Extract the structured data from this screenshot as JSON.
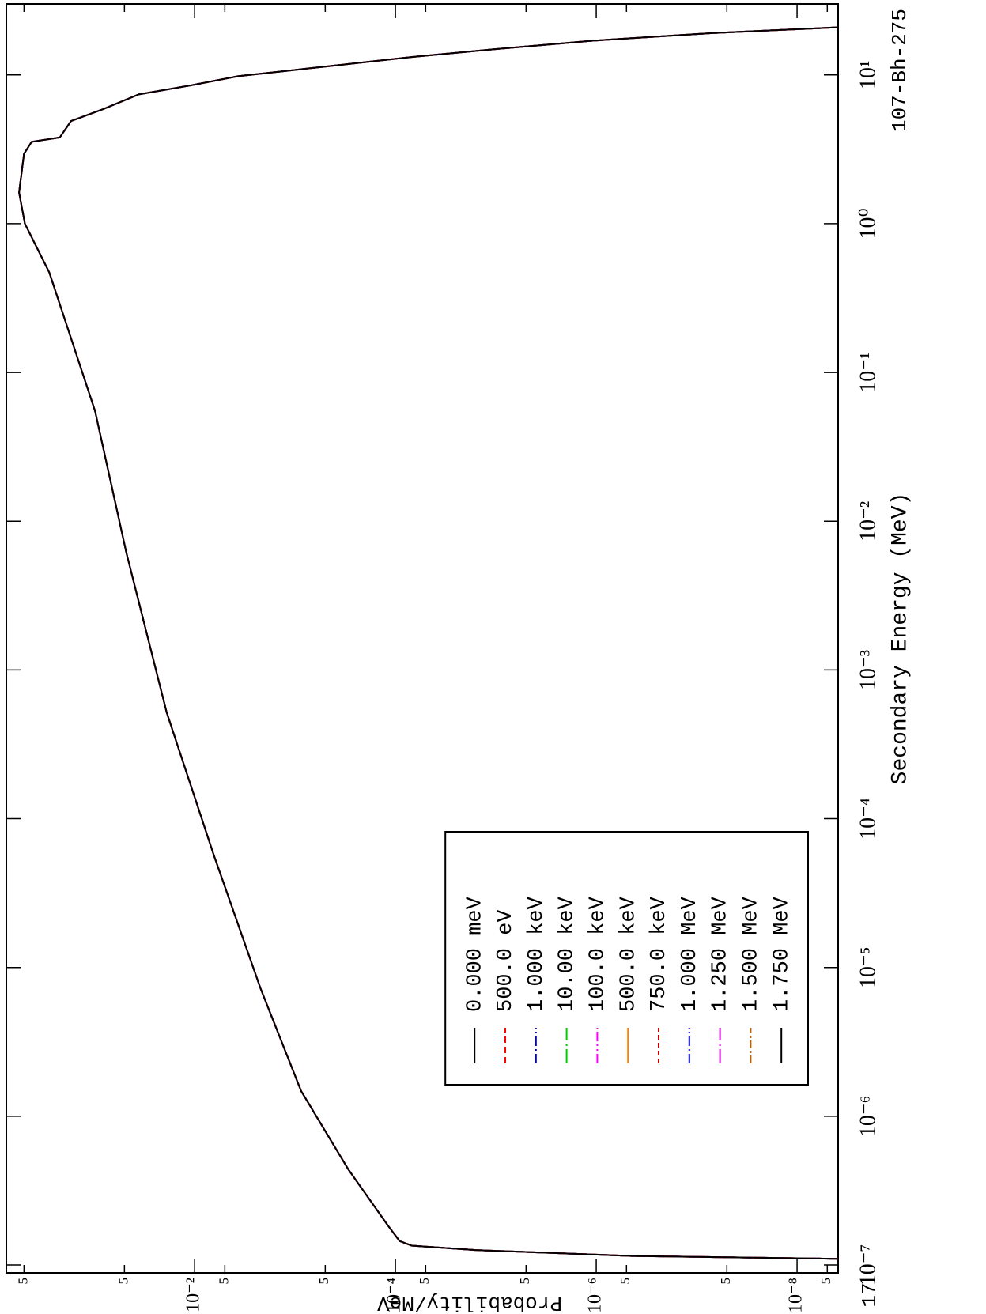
{
  "chart_data": {
    "type": "line",
    "xlabel": "Secondary Energy (MeV)",
    "ylabel": "Probability/MeV",
    "annotations": [
      "107-Bh-275",
      "17"
    ],
    "log_x": true,
    "log_y": true,
    "legend": "lower left",
    "xlim": [
      8.85e-08,
      30
    ],
    "ylim": [
      3.9e-09,
      0.75
    ],
    "xticks": [
      {
        "value": 1e-07,
        "label": "10⁻⁷"
      },
      {
        "value": 1e-06,
        "label": "10⁻⁶"
      },
      {
        "value": 1e-05,
        "label": "10⁻⁵"
      },
      {
        "value": 0.0001,
        "label": "10⁻⁴"
      },
      {
        "value": 0.001,
        "label": "10⁻³"
      },
      {
        "value": 0.01,
        "label": "10⁻²"
      },
      {
        "value": 0.1,
        "label": "10⁻¹"
      },
      {
        "value": 1,
        "label": "10⁰"
      },
      {
        "value": 10,
        "label": "10¹"
      }
    ],
    "yticks": [
      {
        "value": 0.5,
        "label": "5"
      },
      {
        "value": 0.05,
        "label": "5"
      },
      {
        "value": 0.01,
        "label": "10⁻²"
      },
      {
        "value": 0.005,
        "label": "5"
      },
      {
        "value": 0.0005,
        "label": "5"
      },
      {
        "value": 0.0001,
        "label": "10⁻⁴"
      },
      {
        "value": 5e-05,
        "label": "5"
      },
      {
        "value": 5e-06,
        "label": "5"
      },
      {
        "value": 1e-06,
        "label": "10⁻⁶"
      },
      {
        "value": 5e-07,
        "label": "5"
      },
      {
        "value": 5e-08,
        "label": "5"
      },
      {
        "value": 1e-08,
        "label": "10⁻⁸"
      },
      {
        "value": 5e-09,
        "label": "5"
      }
    ],
    "x": [
      1.1e-07,
      1.15e-07,
      1.26e-07,
      1.35e-07,
      1.45e-07,
      1.86e-07,
      4.4e-07,
      1.48e-06,
      7.2e-06,
      5.8e-05,
      0.00052,
      0.0062,
      0.055,
      0.47,
      1.0,
      1.62,
      2.95,
      3.55,
      3.8,
      4.9,
      5.9,
      7.4,
      8.5,
      9.8,
      11.2,
      13.2,
      14.8,
      17.0,
      19.1,
      20.9
    ],
    "series": [
      {
        "name": "0.000 meV",
        "color": "#000000",
        "values": [
          3.9e-09,
          4.4e-07,
          1.6e-05,
          6.9e-05,
          9.1e-05,
          0.00012,
          0.000295,
          0.00087,
          0.0022,
          0.0065,
          0.019,
          0.048,
          0.098,
          0.28,
          0.49,
          0.56,
          0.5,
          0.42,
          0.22,
          0.17,
          0.081,
          0.036,
          0.011,
          0.0037,
          0.00062,
          6.9e-05,
          1.15e-05,
          1.07e-06,
          7.1e-08,
          3.9e-09
        ]
      },
      {
        "name": "500.0 eV",
        "color": "#ff0000",
        "values": [
          3.9e-09,
          4.4e-07,
          1.6e-05,
          6.9e-05,
          9.1e-05,
          0.00012,
          0.000295,
          0.00087,
          0.0022,
          0.0065,
          0.019,
          0.048,
          0.098,
          0.28,
          0.49,
          0.56,
          0.5,
          0.42,
          0.22,
          0.17,
          0.081,
          0.036,
          0.011,
          0.0037,
          0.00062,
          6.9e-05,
          1.15e-05,
          1.07e-06,
          7.1e-08,
          3.9e-09
        ]
      },
      {
        "name": "1.000 keV",
        "color": "#0000cc",
        "values": [
          3.9e-09,
          4.4e-07,
          1.6e-05,
          6.9e-05,
          9.1e-05,
          0.00012,
          0.000295,
          0.00087,
          0.0022,
          0.0065,
          0.019,
          0.048,
          0.098,
          0.28,
          0.49,
          0.56,
          0.5,
          0.42,
          0.22,
          0.17,
          0.081,
          0.036,
          0.011,
          0.0037,
          0.00062,
          6.9e-05,
          1.15e-05,
          1.07e-06,
          7.1e-08,
          3.9e-09
        ]
      },
      {
        "name": "10.00 keV",
        "color": "#00cc00",
        "values": [
          3.9e-09,
          4.4e-07,
          1.6e-05,
          6.9e-05,
          9.1e-05,
          0.00012,
          0.000295,
          0.00087,
          0.0022,
          0.0065,
          0.019,
          0.048,
          0.098,
          0.28,
          0.49,
          0.56,
          0.5,
          0.42,
          0.22,
          0.17,
          0.081,
          0.036,
          0.011,
          0.0037,
          0.00062,
          6.9e-05,
          1.15e-05,
          1.07e-06,
          7.1e-08,
          3.9e-09
        ]
      },
      {
        "name": "100.0 keV",
        "color": "#ff00ff",
        "values": [
          3.9e-09,
          4.4e-07,
          1.6e-05,
          6.9e-05,
          9.1e-05,
          0.00012,
          0.000295,
          0.00087,
          0.0022,
          0.0065,
          0.019,
          0.048,
          0.098,
          0.28,
          0.49,
          0.56,
          0.5,
          0.42,
          0.22,
          0.17,
          0.081,
          0.036,
          0.011,
          0.0037,
          0.00062,
          6.9e-05,
          1.15e-05,
          1.07e-06,
          7.1e-08,
          3.9e-09
        ]
      },
      {
        "name": "500.0 keV",
        "color": "#ff8000",
        "values": [
          3.9e-09,
          4.4e-07,
          1.6e-05,
          6.9e-05,
          9.1e-05,
          0.00012,
          0.000295,
          0.00087,
          0.0022,
          0.0065,
          0.019,
          0.048,
          0.098,
          0.28,
          0.49,
          0.56,
          0.5,
          0.42,
          0.22,
          0.17,
          0.081,
          0.036,
          0.011,
          0.0037,
          0.00062,
          6.9e-05,
          1.15e-05,
          1.07e-06,
          7.1e-08,
          3.9e-09
        ]
      },
      {
        "name": "750.0 keV",
        "color": "#cc0000",
        "values": [
          3.9e-09,
          4.4e-07,
          1.6e-05,
          6.9e-05,
          9.1e-05,
          0.00012,
          0.000295,
          0.00087,
          0.0022,
          0.0065,
          0.019,
          0.048,
          0.098,
          0.28,
          0.49,
          0.56,
          0.5,
          0.42,
          0.22,
          0.17,
          0.081,
          0.036,
          0.011,
          0.0037,
          0.00062,
          6.9e-05,
          1.15e-05,
          1.07e-06,
          7.1e-08,
          3.9e-09
        ]
      },
      {
        "name": "1.000 MeV",
        "color": "#0000ff",
        "values": [
          3.9e-09,
          4.4e-07,
          1.6e-05,
          6.9e-05,
          9.1e-05,
          0.00012,
          0.000295,
          0.00087,
          0.0022,
          0.0065,
          0.019,
          0.048,
          0.098,
          0.28,
          0.49,
          0.56,
          0.5,
          0.42,
          0.22,
          0.17,
          0.081,
          0.036,
          0.011,
          0.0037,
          0.00062,
          6.9e-05,
          1.15e-05,
          1.07e-06,
          7.1e-08,
          3.9e-09
        ]
      },
      {
        "name": "1.250 MeV",
        "color": "#cc00cc",
        "values": [
          3.9e-09,
          4.4e-07,
          1.6e-05,
          6.9e-05,
          9.1e-05,
          0.00012,
          0.000295,
          0.00087,
          0.0022,
          0.0065,
          0.019,
          0.048,
          0.098,
          0.28,
          0.49,
          0.56,
          0.5,
          0.42,
          0.22,
          0.17,
          0.081,
          0.036,
          0.011,
          0.0037,
          0.00062,
          6.9e-05,
          1.15e-05,
          1.07e-06,
          7.1e-08,
          3.9e-09
        ]
      },
      {
        "name": "1.500 MeV",
        "color": "#c06000",
        "values": [
          3.9e-09,
          4.4e-07,
          1.6e-05,
          6.9e-05,
          9.1e-05,
          0.00012,
          0.000295,
          0.00087,
          0.0022,
          0.0065,
          0.019,
          0.048,
          0.098,
          0.28,
          0.49,
          0.56,
          0.5,
          0.42,
          0.22,
          0.17,
          0.081,
          0.036,
          0.011,
          0.0037,
          0.00062,
          6.9e-05,
          1.15e-05,
          1.07e-06,
          7.1e-08,
          3.9e-09
        ]
      },
      {
        "name": "1.750 MeV",
        "color": "#000000",
        "values": [
          3.9e-09,
          4.4e-07,
          1.6e-05,
          6.9e-05,
          9.1e-05,
          0.00012,
          0.000295,
          0.00087,
          0.0022,
          0.0065,
          0.019,
          0.048,
          0.098,
          0.28,
          0.49,
          0.56,
          0.5,
          0.42,
          0.22,
          0.17,
          0.081,
          0.036,
          0.011,
          0.0037,
          0.00062,
          6.9e-05,
          1.15e-05,
          1.07e-06,
          7.1e-08,
          3.9e-09
        ]
      }
    ]
  }
}
